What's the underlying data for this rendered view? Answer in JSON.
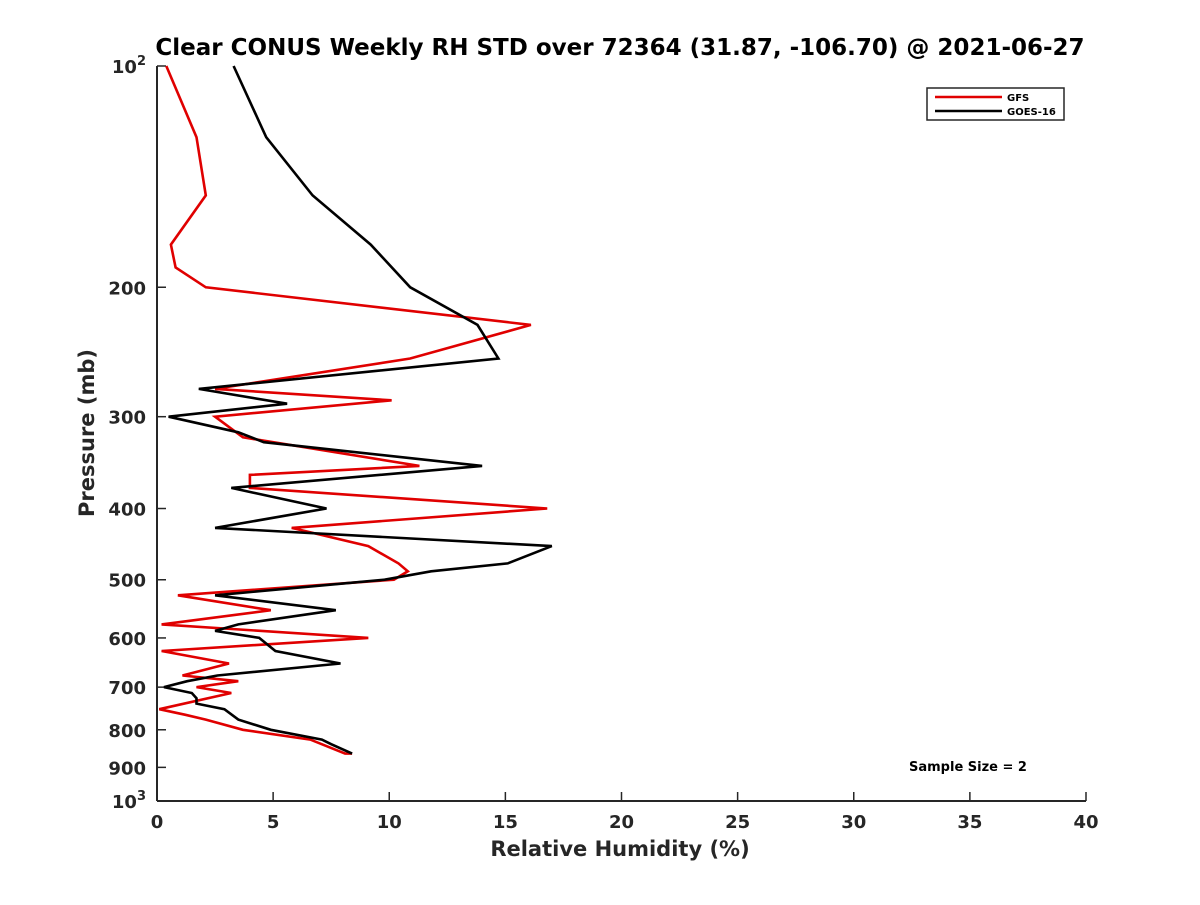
{
  "chart_data": {
    "type": "line",
    "title": "Clear CONUS Weekly RH STD over 72364 (31.87, -106.70) @ 2021-06-27",
    "xlabel": "Relative Humidity (%)",
    "ylabel": "Pressure (mb)",
    "xlim": [
      0,
      40
    ],
    "ylim": [
      100,
      1000
    ],
    "yscale": "log",
    "yreversed": true,
    "grid": false,
    "legend_position": "top-right",
    "x_ticks": [
      0,
      5,
      10,
      15,
      20,
      25,
      30,
      35,
      40
    ],
    "x_tick_labels": [
      "0",
      "5",
      "10",
      "15",
      "20",
      "25",
      "30",
      "35",
      "40"
    ],
    "y_ticks": [
      {
        "value": 100,
        "base": "10",
        "exp": "2"
      },
      {
        "value": 200,
        "label": "200"
      },
      {
        "value": 300,
        "label": "300"
      },
      {
        "value": 400,
        "label": "400"
      },
      {
        "value": 500,
        "label": "500"
      },
      {
        "value": 600,
        "label": "600"
      },
      {
        "value": 700,
        "label": "700"
      },
      {
        "value": 800,
        "label": "800"
      },
      {
        "value": 900,
        "label": "900"
      },
      {
        "value": 1000,
        "base": "10",
        "exp": "3"
      }
    ],
    "annotation": "Sample Size = 2",
    "series": [
      {
        "name": "GFS",
        "color": "#e00000",
        "points": [
          [
            0.4,
            100
          ],
          [
            1.7,
            125
          ],
          [
            2.1,
            150
          ],
          [
            0.6,
            175
          ],
          [
            0.8,
            188
          ],
          [
            2.1,
            200
          ],
          [
            16.1,
            225
          ],
          [
            10.9,
            250
          ],
          [
            2.5,
            275
          ],
          [
            10.1,
            285
          ],
          [
            2.5,
            300
          ],
          [
            3.7,
            320
          ],
          [
            11.3,
            350
          ],
          [
            4.0,
            360
          ],
          [
            4.0,
            375
          ],
          [
            16.8,
            400
          ],
          [
            5.8,
            425
          ],
          [
            9.1,
            450
          ],
          [
            10.4,
            475
          ],
          [
            10.8,
            487
          ],
          [
            10.2,
            500
          ],
          [
            0.9,
            525
          ],
          [
            4.9,
            550
          ],
          [
            0.2,
            575
          ],
          [
            9.1,
            600
          ],
          [
            0.2,
            625
          ],
          [
            3.1,
            650
          ],
          [
            1.1,
            675
          ],
          [
            3.5,
            687
          ],
          [
            1.7,
            700
          ],
          [
            3.2,
            713
          ],
          [
            0.1,
            750
          ],
          [
            1.2,
            763
          ],
          [
            2.1,
            775
          ],
          [
            3.7,
            800
          ],
          [
            6.6,
            825
          ],
          [
            8.1,
            862
          ],
          [
            8.4,
            862
          ]
        ]
      },
      {
        "name": "GOES-16",
        "color": "#000000",
        "points": [
          [
            3.3,
            100
          ],
          [
            4.7,
            125
          ],
          [
            6.7,
            150
          ],
          [
            9.2,
            175
          ],
          [
            10.9,
            200
          ],
          [
            13.8,
            225
          ],
          [
            14.7,
            250
          ],
          [
            1.8,
            275
          ],
          [
            5.6,
            288
          ],
          [
            0.5,
            300
          ],
          [
            3.5,
            315
          ],
          [
            4.6,
            325
          ],
          [
            14.0,
            350
          ],
          [
            3.2,
            375
          ],
          [
            7.3,
            400
          ],
          [
            2.5,
            425
          ],
          [
            17.0,
            450
          ],
          [
            15.1,
            475
          ],
          [
            11.8,
            487
          ],
          [
            9.8,
            500
          ],
          [
            2.5,
            525
          ],
          [
            7.7,
            550
          ],
          [
            3.5,
            575
          ],
          [
            2.5,
            587
          ],
          [
            4.4,
            600
          ],
          [
            5.1,
            625
          ],
          [
            7.9,
            650
          ],
          [
            2.6,
            675
          ],
          [
            1.3,
            687
          ],
          [
            0.3,
            700
          ],
          [
            1.5,
            713
          ],
          [
            1.7,
            725
          ],
          [
            1.7,
            737
          ],
          [
            2.9,
            750
          ],
          [
            3.5,
            775
          ],
          [
            4.9,
            800
          ],
          [
            7.1,
            825
          ],
          [
            7.5,
            837
          ],
          [
            8.4,
            862
          ]
        ]
      }
    ]
  }
}
